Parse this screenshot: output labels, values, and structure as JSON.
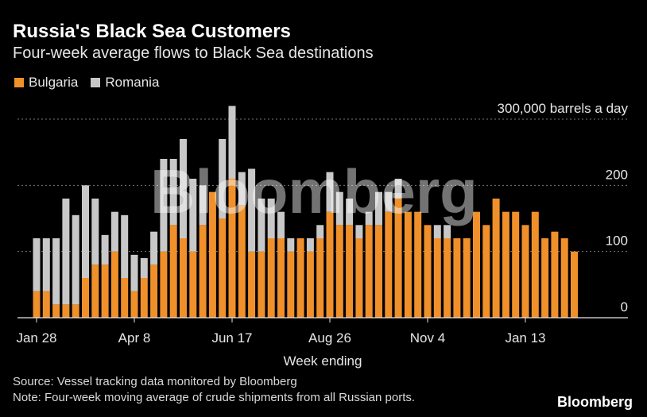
{
  "header": {
    "title": "Russia's Black Sea Customers",
    "subtitle": "Four-week average flows to Black Sea destinations"
  },
  "legend": [
    {
      "label": "Bulgaria",
      "color": "#f0902a"
    },
    {
      "label": "Romania",
      "color": "#c8c8c8"
    }
  ],
  "footer": {
    "source": "Source: Vessel tracking data monitored by Bloomberg",
    "note": "Note: Four-week moving average of crude shipments from all Russian ports.",
    "logo": "Bloomberg"
  },
  "watermark": "Bloomberg",
  "chart_data": {
    "type": "bar",
    "stacked": true,
    "unit_label": "300,000 barrels a day",
    "xlabel": "Week ending",
    "ylim": [
      0,
      300
    ],
    "yticks": [
      0,
      100,
      200,
      300
    ],
    "ytick_labels": [
      "0",
      "100",
      "200",
      "300,000 barrels a day"
    ],
    "xtick_labels": [
      "Jan 28",
      "Apr 8",
      "Jun 17",
      "Aug 26",
      "Nov 4",
      "Jan 13"
    ],
    "xtick_index": [
      0,
      10,
      20,
      30,
      40,
      50
    ],
    "grid": true,
    "series": [
      {
        "name": "Bulgaria",
        "color": "#f0902a",
        "values": [
          40,
          40,
          20,
          20,
          20,
          60,
          80,
          80,
          100,
          60,
          40,
          60,
          80,
          100,
          140,
          120,
          100,
          140,
          190,
          150,
          210,
          170,
          100,
          100,
          120,
          120,
          100,
          120,
          100,
          120,
          160,
          140,
          140,
          120,
          140,
          140,
          160,
          180,
          160,
          160,
          140,
          120,
          120,
          120,
          120,
          160,
          140,
          180,
          160,
          160,
          140,
          160,
          120,
          130,
          120,
          100
        ]
      },
      {
        "name": "Romania",
        "color": "#c8c8c8",
        "values": [
          80,
          80,
          100,
          160,
          135,
          140,
          100,
          45,
          60,
          95,
          55,
          30,
          50,
          140,
          100,
          150,
          110,
          60,
          0,
          120,
          110,
          50,
          125,
          80,
          60,
          40,
          20,
          0,
          20,
          20,
          60,
          50,
          40,
          20,
          20,
          50,
          30,
          30,
          0,
          0,
          0,
          20,
          20,
          0,
          0,
          0,
          0,
          0,
          0,
          0,
          0,
          0,
          0,
          0,
          0,
          0
        ]
      }
    ]
  }
}
